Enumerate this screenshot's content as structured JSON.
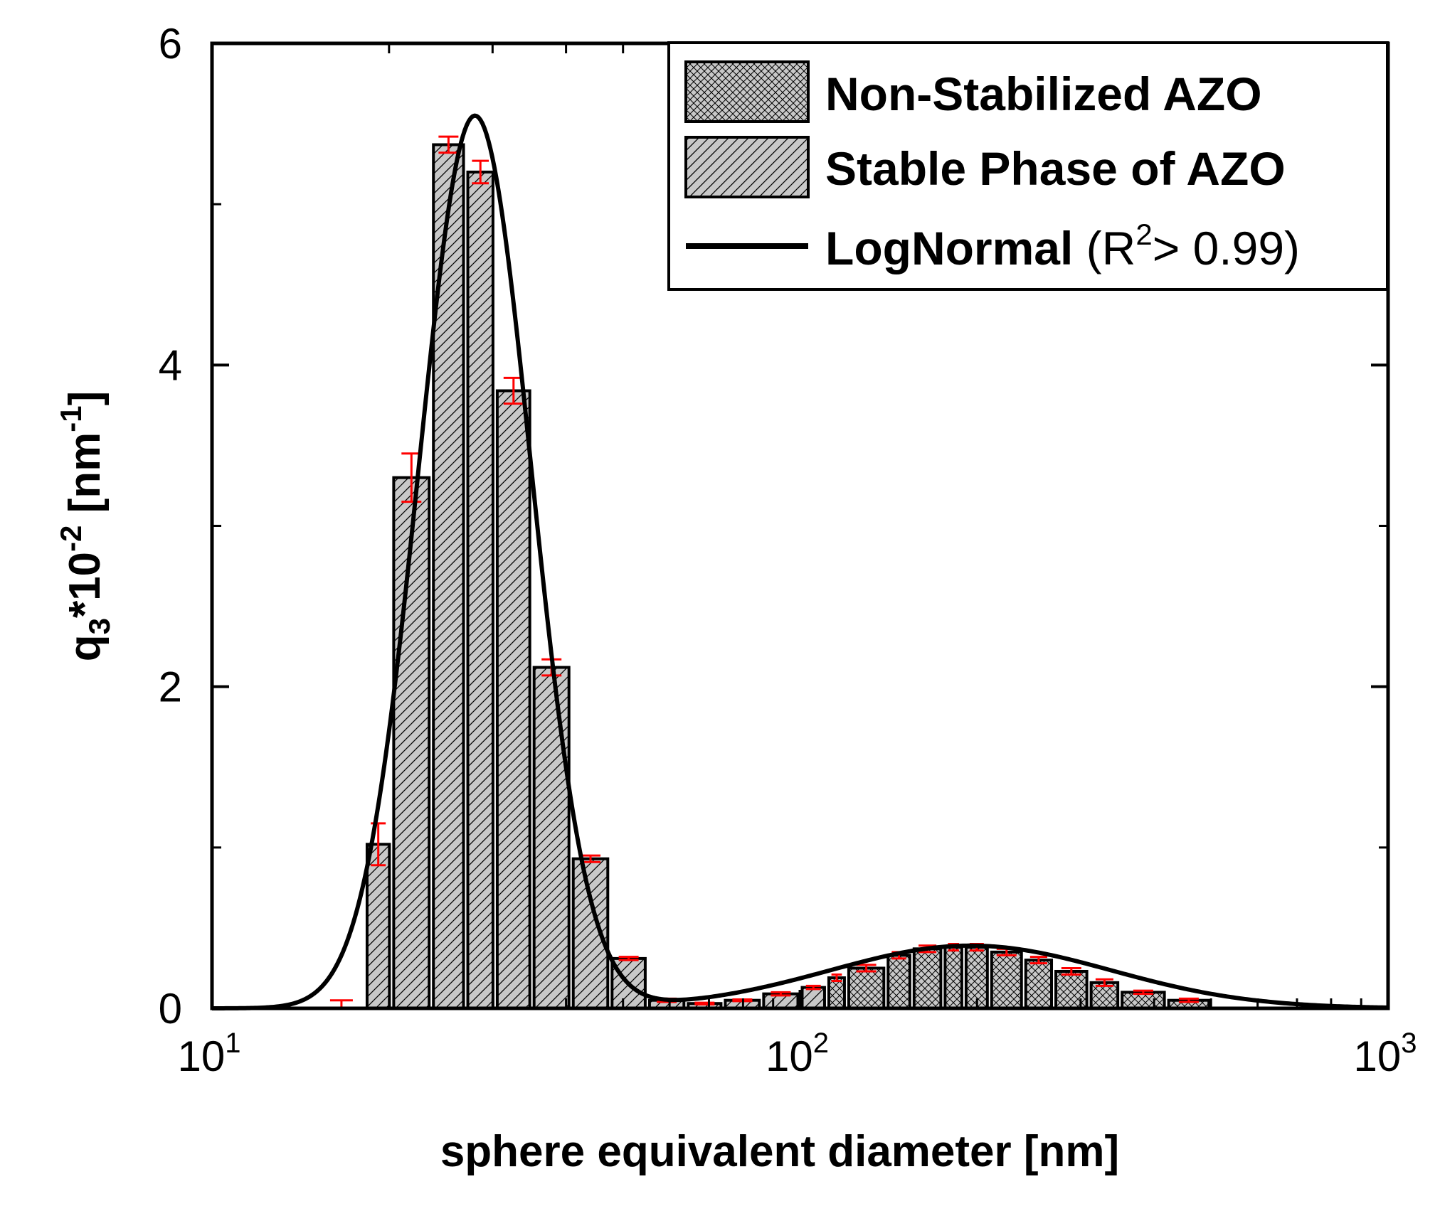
{
  "chart_data": {
    "type": "bar",
    "x_scale": "log",
    "xlim": [
      10,
      1000
    ],
    "ylim": [
      0,
      6
    ],
    "xlabel": "sphere equivalent diameter [nm]",
    "ylabel": {
      "prefix": "q",
      "sub": "3",
      "mid": "*10",
      "sup1": "-2",
      "unit": " [nm",
      "sup2": "-1",
      "end": "]"
    },
    "x_ticks": [
      {
        "value": 10,
        "base": "10",
        "exp": "1"
      },
      {
        "value": 100,
        "base": "10",
        "exp": "2"
      },
      {
        "value": 1000,
        "base": "10",
        "exp": "3"
      }
    ],
    "y_ticks": [
      {
        "value": 0,
        "label": "0"
      },
      {
        "value": 2,
        "label": "2"
      },
      {
        "value": 4,
        "label": "4"
      },
      {
        "value": 6,
        "label": "6"
      }
    ],
    "y_minor_ticks": [
      1,
      3,
      5
    ],
    "series": [
      {
        "name": "Non-Stabilized AZO",
        "pattern": "crosshatch",
        "bins": [
          {
            "lo": 111,
            "hi": 120,
            "value": 0.19,
            "err": 0.02
          },
          {
            "lo": 120,
            "hi": 140,
            "value": 0.25,
            "err": 0.02
          },
          {
            "lo": 140,
            "hi": 155,
            "value": 0.33,
            "err": 0.02
          },
          {
            "lo": 155,
            "hi": 175,
            "value": 0.37,
            "err": 0.02
          },
          {
            "lo": 175,
            "hi": 190,
            "value": 0.38,
            "err": 0.02
          },
          {
            "lo": 190,
            "hi": 210,
            "value": 0.38,
            "err": 0.02
          },
          {
            "lo": 210,
            "hi": 240,
            "value": 0.35,
            "err": 0.02
          },
          {
            "lo": 240,
            "hi": 270,
            "value": 0.3,
            "err": 0.02
          },
          {
            "lo": 270,
            "hi": 310,
            "value": 0.23,
            "err": 0.02
          },
          {
            "lo": 310,
            "hi": 350,
            "value": 0.16,
            "err": 0.02
          },
          {
            "lo": 350,
            "hi": 420,
            "value": 0.1,
            "err": 0.01
          },
          {
            "lo": 420,
            "hi": 500,
            "value": 0.05,
            "err": 0.01
          }
        ]
      },
      {
        "name": "Stable Phase of AZO",
        "pattern": "diagonal",
        "bins": [
          {
            "lo": 18.2,
            "hi": 20.2,
            "value": 1.02,
            "err": 0.13
          },
          {
            "lo": 20.2,
            "hi": 23.6,
            "value": 3.3,
            "err": 0.15
          },
          {
            "lo": 23.6,
            "hi": 27.0,
            "value": 5.37,
            "err": 0.05
          },
          {
            "lo": 27.0,
            "hi": 30.3,
            "value": 5.2,
            "err": 0.07
          },
          {
            "lo": 30.3,
            "hi": 35.0,
            "value": 3.84,
            "err": 0.08
          },
          {
            "lo": 35.0,
            "hi": 40.8,
            "value": 2.12,
            "err": 0.05
          },
          {
            "lo": 40.8,
            "hi": 47.5,
            "value": 0.93,
            "err": 0.02
          },
          {
            "lo": 47.5,
            "hi": 55.0,
            "value": 0.31,
            "err": 0.01
          },
          {
            "lo": 55.0,
            "hi": 64.0,
            "value": 0.05,
            "err": 0.01
          },
          {
            "lo": 64.0,
            "hi": 74.0,
            "value": 0.03,
            "err": 0.005
          },
          {
            "lo": 74.0,
            "hi": 86.0,
            "value": 0.05,
            "err": 0.005
          },
          {
            "lo": 86.0,
            "hi": 100.0,
            "value": 0.09,
            "err": 0.01
          },
          {
            "lo": 100.0,
            "hi": 111.0,
            "value": 0.13,
            "err": 0.01
          }
        ],
        "outliers": [
          {
            "x": 16.6,
            "value": 0.03,
            "err": 0.02
          }
        ]
      },
      {
        "name": "LogNormal",
        "type": "line",
        "components": [
          {
            "amplitude": 5.55,
            "center": 28.0,
            "sigma": 0.22
          },
          {
            "amplitude": 0.39,
            "center": 195.0,
            "sigma": 0.55
          }
        ]
      }
    ],
    "legend": {
      "position": "top-right",
      "entries": [
        {
          "label": "Non-Stabilized AZO"
        },
        {
          "label": "Stable Phase of AZO"
        },
        {
          "label": "LogNormal",
          "suffix_pre": " (R",
          "suffix_sup": "2",
          "suffix_post": "> 0.99)"
        }
      ]
    },
    "colors": {
      "bar_fill": "#c8c8c8",
      "bar_stroke": "#000000",
      "error_bar": "#ff0000",
      "curve": "#000000",
      "axis": "#000000"
    }
  }
}
